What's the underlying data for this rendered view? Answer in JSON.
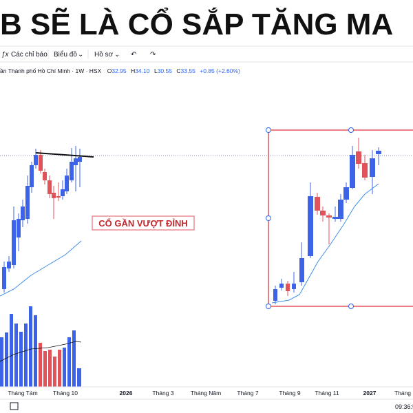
{
  "headline": "B SẼ LÀ CỔ SẮP TĂNG MA",
  "toolbar": {
    "indicators": "Các chỉ báo",
    "chart": "Biểu đồ",
    "profile": "Hồ sơ"
  },
  "legend": {
    "symbol": "ần Thành phố Hồ Chí Minh · 1W · HSX",
    "open_label": "O",
    "open": "32.95",
    "high_label": "H",
    "high": "34.10",
    "low_label": "L",
    "low": "30.55",
    "close_label": "C",
    "close": "33.55",
    "change": "+0.85 (+2.60%)"
  },
  "annotation": "CỔ GẦN VƯỢT ĐỈNH",
  "x_axis": [
    "Tháng Tám",
    "Tháng 10",
    "2026",
    "Tháng 3",
    "Tháng Năm",
    "Tháng 7",
    "Tháng 9",
    "Tháng 11",
    "2027",
    "Tháng"
  ],
  "status": {
    "time": "09:36:5"
  }
}
